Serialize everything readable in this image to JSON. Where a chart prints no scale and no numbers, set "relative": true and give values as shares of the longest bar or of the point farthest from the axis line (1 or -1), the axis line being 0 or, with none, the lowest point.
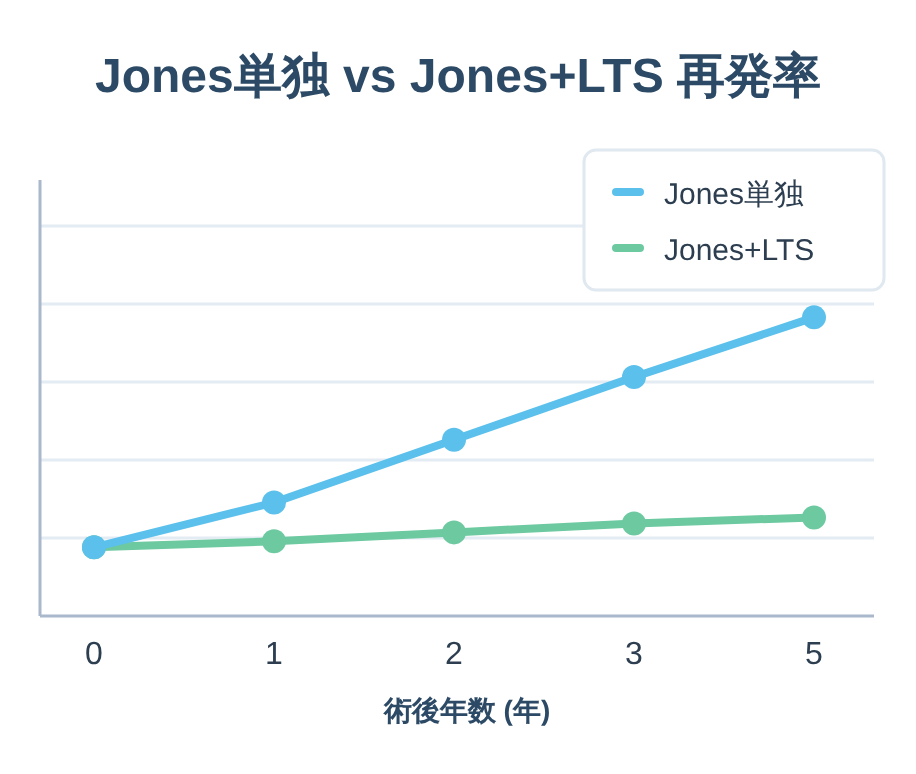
{
  "chart_data": {
    "type": "line",
    "title": "Jones単独 vs Jones+LTS 再発率",
    "xlabel": "術後年数 (年)",
    "categories": [
      "0",
      "1",
      "2",
      "3",
      "5"
    ],
    "relative": true,
    "grid": "y",
    "legend": "top right",
    "marker": "circle",
    "line_style": "solid",
    "series": [
      {
        "name": "Jones単独",
        "color": "#5bc0eb",
        "values": [
          0.23,
          0.38,
          0.59,
          0.8,
          1.0
        ]
      },
      {
        "name": "Jones+LTS",
        "color": "#6cc9a0",
        "values": [
          0.23,
          0.25,
          0.28,
          0.31,
          0.33
        ]
      }
    ]
  }
}
